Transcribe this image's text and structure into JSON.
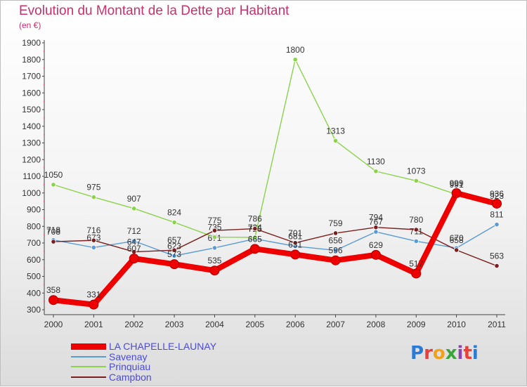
{
  "header": {
    "title": "Evolution du Montant de la Dette par Habitant",
    "subtitle": "(en €)"
  },
  "logo": {
    "text": "Proxiti",
    "colors": [
      "#2b7bd4",
      "#e8403a",
      "#f2a11b",
      "#3aa53a",
      "#8e44ad",
      "#e8403a",
      "#2b7bd4"
    ]
  },
  "chart_data": {
    "type": "line",
    "title": "Evolution du Montant de la Dette par Habitant",
    "subtitle": "(en €)",
    "x": [
      "2000",
      "2001",
      "2002",
      "2003",
      "2004",
      "2005",
      "2006",
      "2007",
      "2008",
      "2009",
      "2010",
      "2011"
    ],
    "ylim": [
      300,
      1900
    ],
    "yticks": [
      300,
      400,
      500,
      600,
      700,
      800,
      900,
      1000,
      1100,
      1200,
      1300,
      1400,
      1500,
      1600,
      1700,
      1800,
      1900
    ],
    "grid": false,
    "legend_position": "bottom-left",
    "series": [
      {
        "name": "LA CHAPELLE-LAUNAY",
        "color": "#ee0000",
        "thick": true,
        "values": [
          358,
          331,
          607,
          573,
          535,
          665,
          631,
          596,
          629,
          517,
          999,
          936
        ]
      },
      {
        "name": "Savenay",
        "color": "#5b9bd5",
        "thick": false,
        "values": [
          718,
          673,
          712,
          623,
          671,
          725,
          681,
          656,
          767,
          711,
          670,
          811
        ]
      },
      {
        "name": "Prinquiau",
        "color": "#8cd24c",
        "thick": false,
        "values": [
          1050,
          975,
          907,
          824,
          735,
          734,
          1800,
          1313,
          1130,
          1073,
          991,
          923
        ]
      },
      {
        "name": "Campbon",
        "color": "#7a1f1f",
        "thick": false,
        "values": [
          708,
          716,
          647,
          657,
          775,
          786,
          701,
          759,
          794,
          780,
          658,
          563
        ]
      }
    ]
  }
}
